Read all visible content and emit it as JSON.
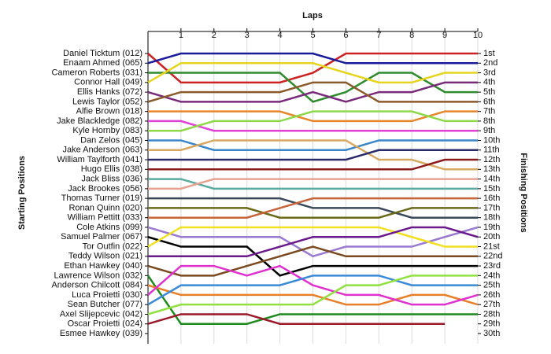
{
  "chart_data": {
    "type": "bump",
    "title": "Laps",
    "y_label": "Starting Positions",
    "y2_label": "Finishing Positions",
    "xlim": [
      0,
      10
    ],
    "xticks": [
      1,
      2,
      3,
      4,
      5,
      6,
      7,
      8,
      9,
      10
    ],
    "ylim": [
      1,
      30
    ],
    "grid": true,
    "finish_labels": [
      "1st",
      "2nd",
      "3rd",
      "4th",
      "5th",
      "6th",
      "7th",
      "8th",
      "9th",
      "10th",
      "11th",
      "12th",
      "13th",
      "14th",
      "15th",
      "16th",
      "17th",
      "18th",
      "19th",
      "20th",
      "21st",
      "22nd",
      "23rd",
      "24th",
      "25th",
      "26th",
      "27th",
      "28th",
      "29th",
      "30th"
    ],
    "series": [
      {
        "name": "Daniel Ticktum (012)",
        "color": "#cc2222",
        "values": [
          1,
          4,
          4,
          4,
          4,
          3,
          1,
          1,
          1,
          1,
          1
        ]
      },
      {
        "name": "Enaam Ahmed (065)",
        "color": "#1a1a9c",
        "values": [
          2,
          1,
          1,
          1,
          1,
          1,
          2,
          2,
          2,
          2,
          2
        ]
      },
      {
        "name": "Cameron Roberts (031)",
        "color": "#2e8b2e",
        "values": [
          3,
          3,
          3,
          3,
          3,
          6,
          5,
          3,
          3,
          5,
          5
        ]
      },
      {
        "name": "Connor Hall (049)",
        "color": "#e6d41e",
        "values": [
          4,
          2,
          2,
          2,
          2,
          2,
          3,
          4,
          4,
          3,
          3
        ]
      },
      {
        "name": "Ellis Hanks (072)",
        "color": "#7a2a7a",
        "values": [
          5,
          6,
          6,
          6,
          6,
          5,
          6,
          5,
          5,
          4,
          4
        ]
      },
      {
        "name": "Lewis Taylor (052)",
        "color": "#8b5a2b",
        "values": [
          6,
          5,
          5,
          5,
          5,
          4,
          4,
          6,
          6,
          6,
          6
        ]
      },
      {
        "name": "Alfie Brown (018)",
        "color": "#e8872a",
        "values": [
          7,
          7,
          7,
          7,
          7,
          8,
          8,
          8,
          8,
          7,
          7
        ]
      },
      {
        "name": "Jake Blackledge (082)",
        "color": "#e040d8",
        "values": [
          8,
          8,
          9,
          9,
          9,
          9,
          9,
          9,
          9,
          9,
          9
        ]
      },
      {
        "name": "Kyle Hornby (083)",
        "color": "#8fd84a",
        "values": [
          9,
          9,
          8,
          8,
          8,
          7,
          7,
          7,
          7,
          8,
          8
        ]
      },
      {
        "name": "Dan Zelos (045)",
        "color": "#3a86c8",
        "values": [
          10,
          10,
          11,
          11,
          11,
          11,
          11,
          10,
          10,
          10,
          10
        ]
      },
      {
        "name": "Jake Anderson (063)",
        "color": "#d8a860",
        "values": [
          11,
          11,
          10,
          10,
          10,
          10,
          10,
          12,
          12,
          13,
          13
        ]
      },
      {
        "name": "William Taylforth (041)",
        "color": "#2a2a6a",
        "values": [
          12,
          12,
          12,
          12,
          12,
          12,
          12,
          11,
          11,
          11,
          11
        ]
      },
      {
        "name": "Hugo Ellis (038)",
        "color": "#8b1a1a",
        "values": [
          13,
          13,
          13,
          13,
          13,
          13,
          13,
          13,
          13,
          12,
          12
        ]
      },
      {
        "name": "Jack Bliss (036)",
        "color": "#5aaaa0",
        "values": [
          14,
          14,
          15,
          15,
          15,
          15,
          15,
          15,
          15,
          15,
          15
        ]
      },
      {
        "name": "Jack Brookes (056)",
        "color": "#e8a090",
        "values": [
          15,
          15,
          14,
          14,
          14,
          14,
          14,
          14,
          14,
          14,
          14
        ]
      },
      {
        "name": "Thomas Turner (019)",
        "color": "#3a4a5a",
        "values": [
          16,
          16,
          16,
          16,
          16,
          17,
          17,
          17,
          18,
          18,
          18
        ]
      },
      {
        "name": "Ronan Quinn (020)",
        "color": "#6a6a1a",
        "values": [
          17,
          17,
          17,
          17,
          18,
          18,
          18,
          18,
          17,
          17,
          17
        ]
      },
      {
        "name": "William Pettitt (033)",
        "color": "#c8643a",
        "values": [
          18,
          18,
          18,
          18,
          17,
          16,
          16,
          16,
          16,
          16,
          16
        ]
      },
      {
        "name": "Cole Atkins (099)",
        "color": "#9a7ad0",
        "values": [
          19,
          20,
          20,
          20,
          20,
          22,
          21,
          21,
          21,
          20,
          19
        ]
      },
      {
        "name": "Samuel Palmer (067)",
        "color": "#000000",
        "values": [
          20,
          21,
          21,
          21,
          24,
          23,
          23,
          23,
          23,
          23,
          23
        ]
      },
      {
        "name": "Tor Outfin (022)",
        "color": "#f0e020",
        "values": [
          21,
          19,
          19,
          19,
          19,
          19,
          19,
          19,
          20,
          21,
          21
        ]
      },
      {
        "name": "Teddy Wilson (021)",
        "color": "#6a1a8a",
        "values": [
          22,
          22,
          22,
          22,
          21,
          20,
          20,
          20,
          19,
          19,
          20
        ]
      },
      {
        "name": "Ethan Hawkey (040)",
        "color": "#7a4a20",
        "values": [
          23,
          24,
          24,
          23,
          22,
          21,
          22,
          22,
          22,
          22,
          22
        ]
      },
      {
        "name": "Lawrence Wilson (032)",
        "color": "#1e8a1e",
        "values": [
          24,
          29,
          29,
          29,
          28,
          28,
          28,
          28,
          28,
          28,
          28
        ]
      },
      {
        "name": "Anderson Chilcott (084)",
        "color": "#e8802a",
        "values": [
          25,
          26,
          26,
          26,
          26,
          26,
          27,
          27,
          26,
          26,
          27
        ]
      },
      {
        "name": "Luca Proietti (030)",
        "color": "#e030d0",
        "values": [
          26,
          23,
          23,
          24,
          23,
          25,
          26,
          26,
          27,
          27,
          26
        ]
      },
      {
        "name": "Sean Butcher (077)",
        "color": "#3a8ad8",
        "values": [
          27,
          25,
          25,
          25,
          25,
          24,
          24,
          24,
          25,
          25,
          25
        ]
      },
      {
        "name": "Axel Slijepcevic (042)",
        "color": "#90e040",
        "values": [
          28,
          27,
          27,
          27,
          27,
          27,
          25,
          25,
          24,
          24,
          24
        ]
      },
      {
        "name": "Oscar Proietti (024)",
        "color": "#9a1a2a",
        "values": [
          29,
          28,
          28,
          28,
          29,
          29,
          29,
          29,
          29,
          29,
          null
        ]
      },
      {
        "name": "Esmee Hawkey (039)",
        "color": "#888888",
        "values": [
          30,
          null,
          null,
          null,
          null,
          null,
          null,
          null,
          null,
          null,
          null
        ]
      }
    ]
  }
}
